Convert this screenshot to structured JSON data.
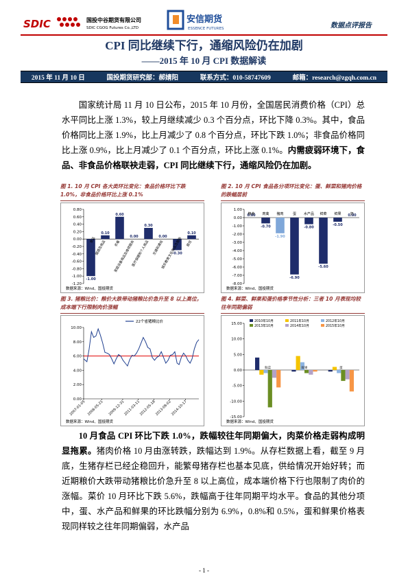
{
  "header": {
    "company_logo": "SDIC",
    "company_cn": "国投中谷期货有限公司",
    "company_en": "SDIC CGOG Futures Co.,LTD",
    "partner_cn": "安信期货",
    "partner_en": "ESSENCE FUTURES",
    "report_type": "数据点评报告"
  },
  "title": "CPI 同比继续下行，通缩风险仍在加剧",
  "subtitle": "——2015 年 10 月 CPI 数据解读",
  "info": [
    "2015 年 11 月 10 日",
    "国投期货研究部：郝婧阳",
    "联系方式：010-58747609",
    "邮箱：research@zgqh.com.cn"
  ],
  "paragraphs": [
    {
      "text": "国家统计局 11 月 10 日公布，2015 年 10 月份，全国居民消费价格（CPI）总水平同比上涨 1.3%，较上月继续减少 0.3 个百分点，环比下降 0.3%。其中，食品价格同比上涨 1.9%，比上月减少了 0.8 个百分点，环比下跌 1.0%；非食品价格同比上涨 0.9%，比上月减少了 0.1 个百分点，环比上涨 0.1%。",
      "bold": "内需疲弱环境下，食品、非食品价格联袂走弱，CPI 同比继续下行，通缩风险仍在加剧。"
    },
    {
      "bold": "10 月食品 CPI 环比下跌 1.0%，跌幅较往年同期偏大，肉菜价格走弱构成明显拖累。",
      "text": "猪肉价格 10 月由涨转跌，跌幅达到 1.9%。从存栏数据上看，截至 9 月底，生猪存栏已经企稳回升，能繁母猪存栏也基本见底，供给情况开始好转；而近期粮价大跌带动猪粮比价急升至 8 以上高位，成本端价格下行也限制了肉价的涨幅。菜价 10 月环比下跌 5.6%，跌幅高于往年同期平均水平。食品的其他分项中，蛋、水产品和鲜果的环比跌幅分别为 6.9%，0.8%和 0.5%，蛋和鲜果价格表现同样较之往年同期偏弱，水产品"
    }
  ],
  "figures": [
    {
      "title": "图 1. 10 月 CPI 各大类环比变化：食品价格环比下跌 1.0%，非食品价格环比上涨 0.1%",
      "source": "数据来源：Wind、国投期货",
      "chart": {
        "type": "bar",
        "categories": [
          "食品",
          "烟酒及用品",
          "衣着",
          "家庭设备用品及维修服务",
          "医疗保健和个人用品",
          "交通和通信",
          "娱乐教育文化用品及服务",
          "居住"
        ],
        "values": [
          -1.0,
          0.1,
          0.6,
          0,
          0.3,
          0,
          -0.3,
          0.1
        ],
        "value_labels": [
          "-1.00",
          "0.10",
          "0.60",
          "0.00",
          "0.30",
          "0.00",
          "-0.30",
          "0.10"
        ],
        "color": "#1f2d6b",
        "ylim": [
          -1.2,
          0.8
        ],
        "yticks": [
          {
            "value": 0.8,
            "label": "0.80"
          },
          {
            "value": 0.6,
            "label": "0.60"
          },
          {
            "value": 0.4,
            "label": "0.40"
          },
          {
            "value": 0.2,
            "label": "0.20"
          },
          {
            "value": 0,
            "label": "0.00"
          },
          {
            "value": -0.2,
            "label": "-0.20"
          },
          {
            "value": -0.4,
            "label": "-0.40"
          },
          {
            "value": -0.6,
            "label": "-0.60"
          },
          {
            "value": -0.8,
            "label": "-0.80"
          },
          {
            "value": -1.0,
            "label": "-1.00"
          },
          {
            "value": -1.2,
            "label": "-1.20"
          }
        ],
        "grid": false,
        "label_style": "rotated"
      }
    },
    {
      "title": "图 2. 10 月 CPI 食品各分项环比变化：蛋、鲜菜和猪肉价格的跌幅居前",
      "source": "数据来源：Wind、国投期货",
      "chart": {
        "type": "bar",
        "categories": [
          "粮食",
          "肉禽",
          "猪肉",
          "蛋",
          "水产品",
          "鲜菜",
          "鲜果",
          "奶"
        ],
        "values": [
          0,
          -0.7,
          -1.9,
          -6.9,
          -0.8,
          -5.6,
          -0.5,
          0
        ],
        "value_labels": [
          "0.00",
          "-0.70",
          "-1.90",
          "-6.90",
          "-0.80",
          "-5.60",
          "-0.50",
          "0.00"
        ],
        "colors": [
          "#1f2d6b",
          "#1f2d6b",
          "#7fa7d9",
          "#1f2d6b",
          "#1f2d6b",
          "#1f2d6b",
          "#1f2d6b",
          "#1f2d6b"
        ],
        "ylim": [
          -8,
          1
        ],
        "yticks": [
          {
            "value": 1,
            "label": "1.00"
          },
          {
            "value": 0,
            "label": "0.00"
          },
          {
            "value": -1,
            "label": "-1.00"
          },
          {
            "value": -2,
            "label": "-2.00"
          },
          {
            "value": -3,
            "label": "-3.00"
          },
          {
            "value": -4,
            "label": "-4.00"
          },
          {
            "value": -5,
            "label": "-5.00"
          },
          {
            "value": -6,
            "label": "-6.00"
          },
          {
            "value": -7,
            "label": "-7.00"
          },
          {
            "value": -8,
            "label": "-8.00"
          }
        ],
        "grid": false,
        "label_style": "top"
      }
    },
    {
      "title": "图 3. 猪粮比价：粮价大跌带动猪粮比价急升至 8 以上高位，成本端下行限制肉价涨幅",
      "source": "数据来源：Wind、国投期货",
      "chart": {
        "type": "line",
        "x": [
          "2007-01-05",
          "2007-04-06",
          "2007-06-08",
          "2007-08-10",
          "2007-10-12",
          "2007-12-14",
          "2008-02-15",
          "2008-04-18",
          "2008-06-20",
          "2008-08-22",
          "2008-10-24",
          "2008-12-26",
          "2009-02-27",
          "2009-05-01",
          "2009-07-03",
          "2009-09-04",
          "2009-11-06",
          "2010-01-08",
          "2010-03-12",
          "2010-05-14",
          "2010-07-16",
          "2010-09-17",
          "2010-11-19",
          "2011-01-21",
          "2011-03-25",
          "2011-05-27",
          "2011-07-29",
          "2011-09-30",
          "2011-12-02",
          "2012-02-03",
          "2012-04-06",
          "2012-06-08",
          "2012-08-10",
          "2012-10-12",
          "2012-12-14",
          "2013-02-15",
          "2013-04-19",
          "2013-06-21",
          "2013-08-23",
          "2013-10-25",
          "2013-12-27",
          "2014-02-28",
          "2014-04-25",
          "2014-06-27",
          "2014-08-29",
          "2014-10-31",
          "2014-12-26",
          "2015-02-27",
          "2015-04-24",
          "2015-06-26",
          "2015-08-28",
          "2015-10-30"
        ],
        "series": [
          {
            "name": "22个省猪粮比价",
            "color": "#1f3f8f",
            "values": [
              5.6,
              5.2,
              7.0,
              9.4,
              8.6,
              8.8,
              9.8,
              8.9,
              7.8,
              6.5,
              6.4,
              6.2,
              5.6,
              4.9,
              5.6,
              6.2,
              6.0,
              5.4,
              5.0,
              4.6,
              5.5,
              6.1,
              6.0,
              6.4,
              7.0,
              7.8,
              8.6,
              8.0,
              7.2,
              7.0,
              5.8,
              5.4,
              5.8,
              6.0,
              6.6,
              5.8,
              5.0,
              5.4,
              6.1,
              6.2,
              6.6,
              5.0,
              4.8,
              5.8,
              6.4,
              6.0,
              5.4,
              5.0,
              5.6,
              7.0,
              7.9,
              8.3
            ]
          }
        ],
        "reference_line": {
          "value": 6,
          "color": "#e00000"
        },
        "xlim": [
          "2007-01-05",
          "2015-10-30"
        ],
        "xticks": [
          "2007-01-05",
          "2008-05-21",
          "2009-12-31",
          "2011-03-11",
          "2012-05-18",
          "2013-08-02",
          "2014-10-17"
        ],
        "ylim": [
          0,
          10
        ],
        "yticks": [
          {
            "value": 0,
            "label": "0.00"
          },
          {
            "value": 2,
            "label": "2.00"
          },
          {
            "value": 4,
            "label": "4.00"
          },
          {
            "value": 6,
            "label": "6.00"
          },
          {
            "value": 8,
            "label": "8.00"
          },
          {
            "value": 10,
            "label": "10.00"
          }
        ],
        "grid": false,
        "legend": "top"
      }
    },
    {
      "title": "图 4. 鲜菜、鲜果和蛋价格季节性分析：三者 10 月表现均较往年同期偏弱",
      "source": "数据来源：Wind、国投期货",
      "chart": {
        "type": "bar",
        "categories": [
          "鲜菜",
          "鲜果",
          "蛋"
        ],
        "series": [
          {
            "name": "2010年10月",
            "color": "#1f2d6b",
            "values": [
              4.0,
              -0.5,
              -0.5
            ]
          },
          {
            "name": "2011年10月",
            "color": "#f5c400",
            "values": [
              -1.5,
              4.5,
              1.0
            ]
          },
          {
            "name": "2012年10月",
            "color": "#8db4e2",
            "values": [
              -1.0,
              2.5,
              -1.0
            ]
          },
          {
            "name": "2013年10月",
            "color": "#6b8e23",
            "values": [
              -12.0,
              -1.0,
              -3.5
            ]
          },
          {
            "name": "2014年10月",
            "color": "#b3a2c7",
            "values": [
              -2.5,
              -1.5,
              -3.0
            ]
          },
          {
            "name": "2015年10月",
            "color": "#f79646",
            "values": [
              -5.6,
              -0.5,
              -6.9
            ]
          }
        ],
        "ylim": [
          -15,
          15
        ],
        "yticks": [
          {
            "value": 15,
            "label": "15.00"
          },
          {
            "value": 10,
            "label": "10.00"
          },
          {
            "value": 5,
            "label": "5.00"
          },
          {
            "value": 0,
            "label": "0.00"
          },
          {
            "value": -5,
            "label": "-5.00"
          },
          {
            "value": -10,
            "label": "-10.00"
          },
          {
            "value": -15,
            "label": "-15.00"
          }
        ],
        "grid": false,
        "legend": "top"
      }
    }
  ],
  "footer": "- 1 -"
}
